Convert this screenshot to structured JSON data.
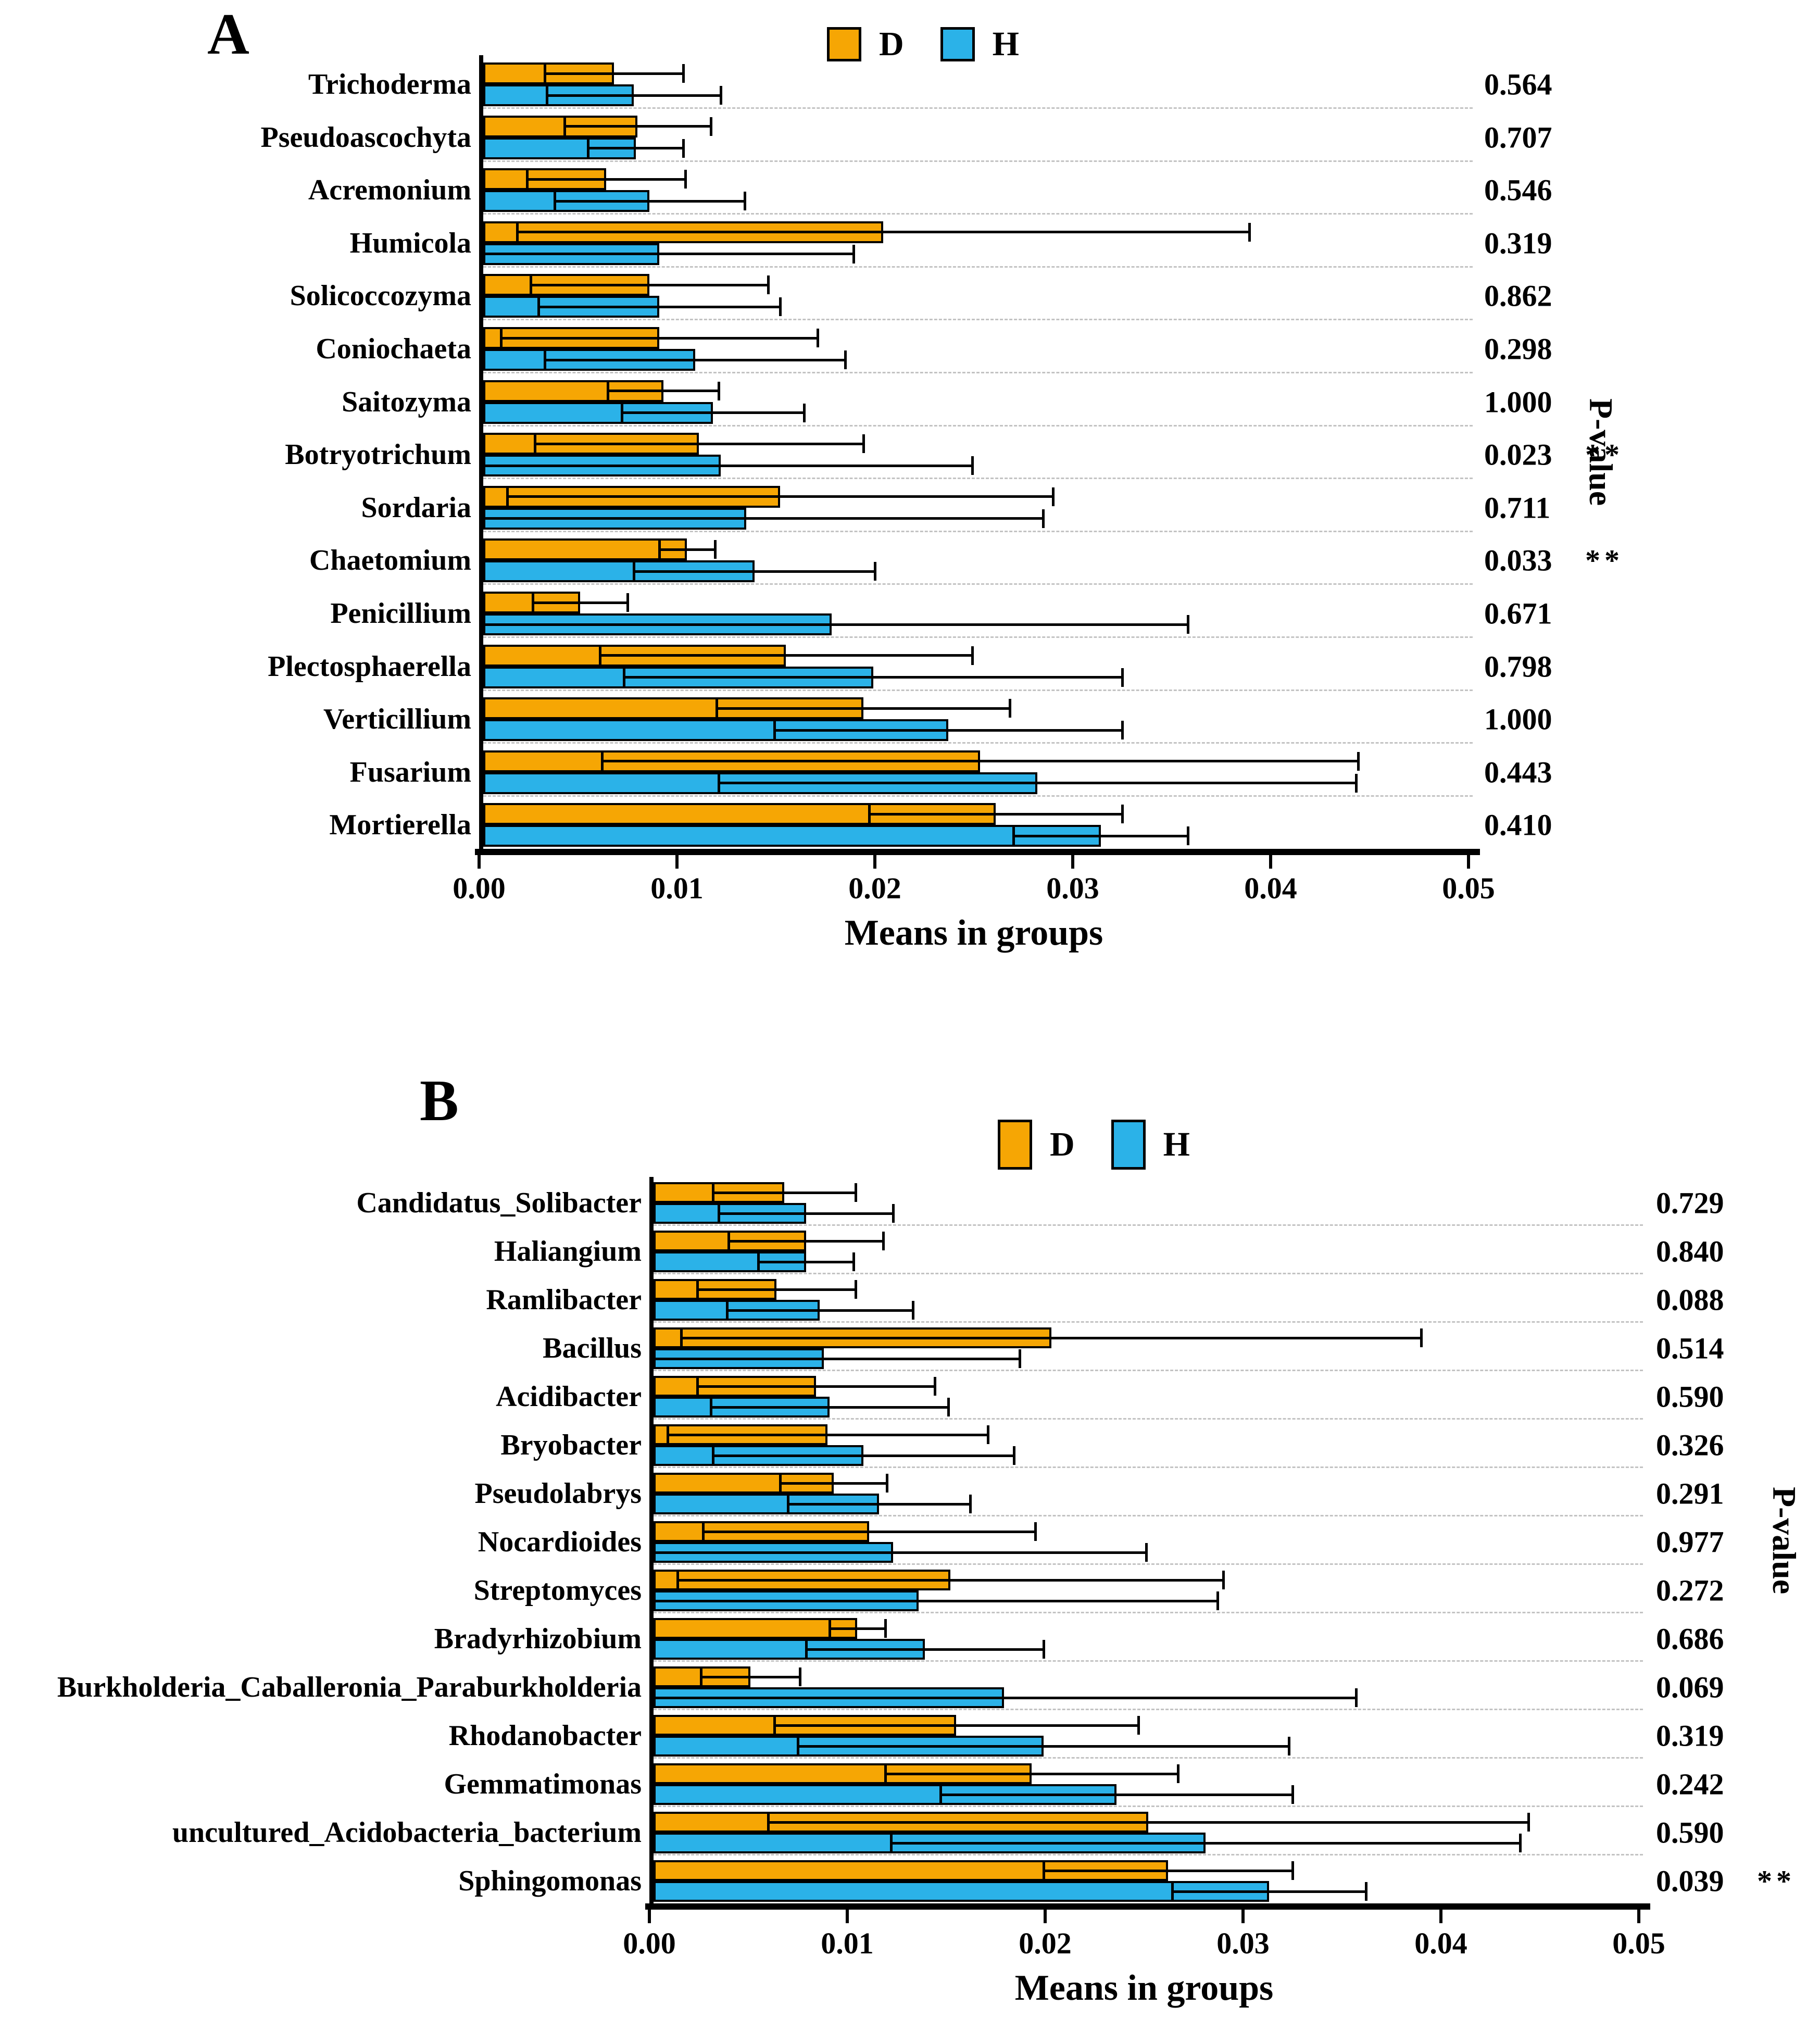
{
  "chart_data": [
    {
      "type": "bar",
      "panel_label": "A",
      "orientation": "horizontal",
      "xlabel": "Means in groups",
      "pvalue_axis_label": "P-value",
      "xlim": [
        0,
        0.05
      ],
      "xticks": [
        "0.00",
        "0.01",
        "0.02",
        "0.03",
        "0.04",
        "0.05"
      ],
      "grid": "dashed-row-separators",
      "legend_position": "top-center",
      "legend": [
        {
          "label": "D",
          "color": "#F6A604"
        },
        {
          "label": "H",
          "color": "#2BB2E8"
        }
      ],
      "categories": [
        "Trichoderma",
        "Pseudoascochyta",
        "Acremonium",
        "Humicola",
        "Solicoccozyma",
        "Coniochaeta",
        "Saitozyma",
        "Botryotrichum",
        "Sordaria",
        "Chaetomium",
        "Penicillium",
        "Plectosphaerella",
        "Verticillium",
        "Fusarium",
        "Mortierella"
      ],
      "series": [
        {
          "name": "D",
          "color": "#F6A604",
          "means": [
            0.0066,
            0.0078,
            0.0062,
            0.0202,
            0.0084,
            0.0089,
            0.0091,
            0.0109,
            0.015,
            0.0103,
            0.0049,
            0.0153,
            0.0192,
            0.0251,
            0.0259
          ],
          "errors": [
            0.0035,
            0.0037,
            0.004,
            0.0185,
            0.006,
            0.008,
            0.0028,
            0.0083,
            0.0138,
            0.0014,
            0.0024,
            0.0094,
            0.0074,
            0.0191,
            0.0064
          ]
        },
        {
          "name": "H",
          "color": "#2BB2E8",
          "means": [
            0.0076,
            0.0077,
            0.0084,
            0.0089,
            0.0089,
            0.0107,
            0.0116,
            0.012,
            0.0133,
            0.0137,
            0.0176,
            0.0197,
            0.0235,
            0.028,
            0.0312
          ],
          "errors": [
            0.0044,
            0.0024,
            0.0048,
            0.0098,
            0.0061,
            0.0076,
            0.0046,
            0.0127,
            0.015,
            0.0061,
            0.018,
            0.0126,
            0.0088,
            0.0161,
            0.0044
          ]
        }
      ],
      "p_values": [
        "0.564",
        "0.707",
        "0.546",
        "0.319",
        "0.862",
        "0.298",
        "1.000",
        "0.023",
        "0.711",
        "0.033",
        "0.671",
        "0.798",
        "1.000",
        "0.443",
        "0.410"
      ],
      "significance": [
        "",
        "",
        "",
        "",
        "",
        "",
        "",
        "**",
        "",
        "**",
        "",
        "",
        "",
        "",
        ""
      ]
    },
    {
      "type": "bar",
      "panel_label": "B",
      "orientation": "horizontal",
      "xlabel": "Means in groups",
      "pvalue_axis_label": "P-value",
      "xlim": [
        0,
        0.05
      ],
      "xticks": [
        "0.00",
        "0.01",
        "0.02",
        "0.03",
        "0.04",
        "0.05"
      ],
      "grid": "dashed-row-separators",
      "legend_position": "top-center",
      "legend": [
        {
          "label": "D",
          "color": "#F6A604"
        },
        {
          "label": "H",
          "color": "#2BB2E8"
        }
      ],
      "categories": [
        "Candidatus_Solibacter",
        "Haliangium",
        "Ramlibacter",
        "Bacillus",
        "Acidibacter",
        "Bryobacter",
        "Pseudolabrys",
        "Nocardioides",
        "Streptomyces",
        "Bradyrhizobium",
        "Burkholderia_Caballeronia_Paraburkholderia",
        "Rhodanobacter",
        "Gemmatimonas",
        "uncultured_Acidobacteria_bacterium",
        "Sphingomonas"
      ],
      "series": [
        {
          "name": "D",
          "color": "#F6A604",
          "means": [
            0.0066,
            0.0077,
            0.0062,
            0.0201,
            0.0082,
            0.0088,
            0.0091,
            0.0109,
            0.015,
            0.0103,
            0.0049,
            0.0153,
            0.0191,
            0.025,
            0.026
          ],
          "errors": [
            0.0036,
            0.0039,
            0.004,
            0.0187,
            0.006,
            0.0081,
            0.0027,
            0.0084,
            0.0138,
            0.0014,
            0.0025,
            0.0092,
            0.0074,
            0.0192,
            0.0063
          ]
        },
        {
          "name": "H",
          "color": "#2BB2E8",
          "means": [
            0.0077,
            0.0077,
            0.0084,
            0.0086,
            0.0089,
            0.0106,
            0.0114,
            0.0121,
            0.0134,
            0.0137,
            0.0177,
            0.0197,
            0.0234,
            0.0279,
            0.0311
          ],
          "errors": [
            0.0044,
            0.0024,
            0.0047,
            0.0099,
            0.006,
            0.0076,
            0.0046,
            0.0128,
            0.0151,
            0.006,
            0.0178,
            0.0124,
            0.0089,
            0.0159,
            0.0049
          ]
        }
      ],
      "p_values": [
        "0.729",
        "0.840",
        "0.088",
        "0.514",
        "0.590",
        "0.326",
        "0.291",
        "0.977",
        "0.272",
        "0.686",
        "0.069",
        "0.319",
        "0.242",
        "0.590",
        "0.039"
      ],
      "significance": [
        "",
        "",
        "",
        "",
        "",
        "",
        "",
        "",
        "",
        "",
        "",
        "",
        "",
        "",
        "**"
      ]
    }
  ]
}
